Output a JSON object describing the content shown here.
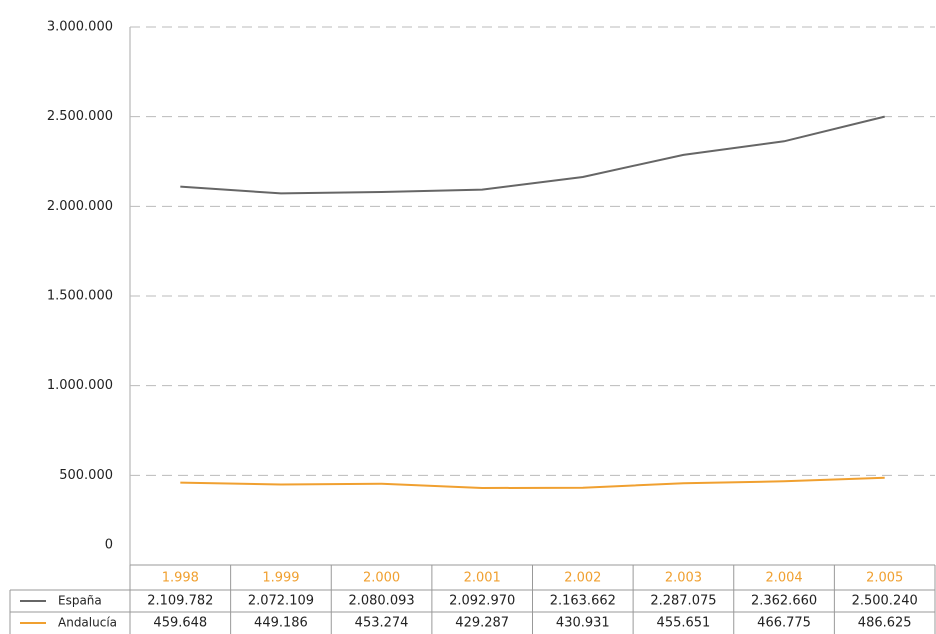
{
  "chart_data": {
    "type": "line",
    "categories": [
      "1.998",
      "1.999",
      "2.000",
      "2.001",
      "2.002",
      "2.003",
      "2.004",
      "2.005"
    ],
    "series": [
      {
        "name": "España",
        "color": "#666666",
        "values": [
          2109782,
          2072109,
          2080093,
          2092970,
          2163662,
          2287075,
          2362660,
          2500240
        ],
        "value_labels": [
          "2.109.782",
          "2.072.109",
          "2.080.093",
          "2.092.970",
          "2.163.662",
          "2.287.075",
          "2.362.660",
          "2.500.240"
        ]
      },
      {
        "name": "Andalucía",
        "color": "#f0a030",
        "values": [
          459648,
          449186,
          453274,
          429287,
          430931,
          455651,
          466775,
          486625
        ],
        "value_labels": [
          "459.648",
          "449.186",
          "453.274",
          "429.287",
          "430.931",
          "455.651",
          "466.775",
          "486.625"
        ]
      }
    ],
    "ylim": [
      0,
      3000000
    ],
    "yticks": [
      {
        "value": 0,
        "label": "0"
      },
      {
        "value": 500000,
        "label": "500.000"
      },
      {
        "value": 1000000,
        "label": "1.000.000"
      },
      {
        "value": 1500000,
        "label": "1.500.000"
      },
      {
        "value": 2000000,
        "label": "2.000.000"
      },
      {
        "value": 2500000,
        "label": "2.500.000"
      },
      {
        "value": 3000000,
        "label": "3.000.000"
      }
    ],
    "grid": true,
    "category_color": "#f0a030"
  }
}
